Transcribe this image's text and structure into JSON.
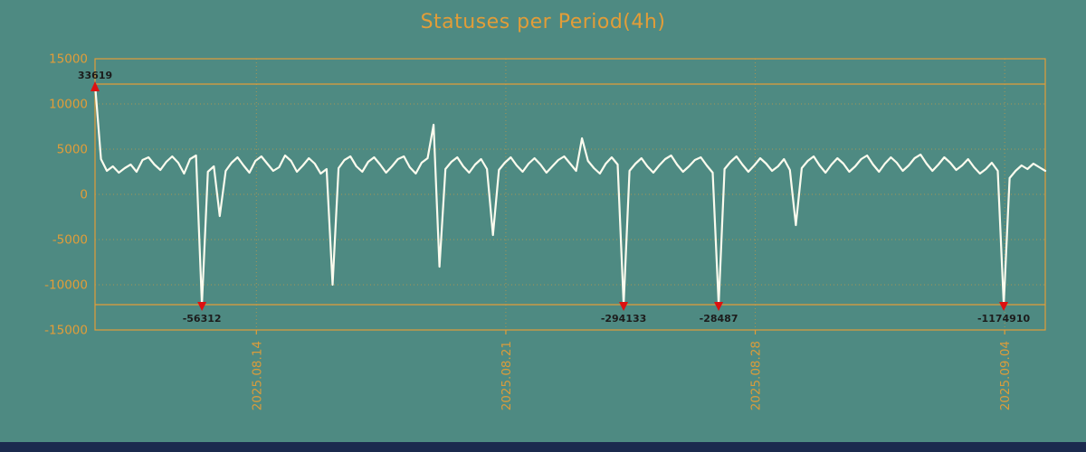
{
  "colors": {
    "background": "#4e8a82",
    "accent": "#e29d38",
    "line": "#fbfbee",
    "marker": "#dd1111",
    "marker_label": "#1c1c1c",
    "footer": "#1b2a4e"
  },
  "chart_data": {
    "type": "line",
    "title": "Statuses per Period(4h)",
    "xlabel": "",
    "ylabel": "",
    "ylim": [
      -15000,
      15000
    ],
    "y_ticks": [
      15000,
      10000,
      5000,
      0,
      -5000,
      -10000,
      -15000
    ],
    "clip_value": 12200,
    "period_hours": 4,
    "grid": true,
    "x_ticks": [
      {
        "pos": 27.17,
        "label": "2025.08.14"
      },
      {
        "pos": 69.17,
        "label": "2025.08.21"
      },
      {
        "pos": 111.17,
        "label": "2025.08.28"
      },
      {
        "pos": 153.17,
        "label": "2025.09.04"
      }
    ],
    "values": [
      33619,
      3900,
      2600,
      3100,
      2400,
      2900,
      3300,
      2500,
      3800,
      4100,
      3300,
      2700,
      3600,
      4200,
      3500,
      2300,
      3900,
      4300,
      -56312,
      2500,
      3100,
      -2400,
      2600,
      3500,
      4100,
      3200,
      2400,
      3700,
      4200,
      3400,
      2600,
      3000,
      4300,
      3700,
      2500,
      3200,
      4000,
      3400,
      2300,
      2800,
      -10000,
      2900,
      3800,
      4200,
      3100,
      2500,
      3600,
      4100,
      3300,
      2400,
      3100,
      3900,
      4200,
      3000,
      2300,
      3500,
      4000,
      7700,
      -8000,
      2800,
      3600,
      4100,
      3100,
      2400,
      3300,
      3900,
      2800,
      -4500,
      2700,
      3500,
      4100,
      3200,
      2500,
      3400,
      4000,
      3300,
      2400,
      3100,
      3800,
      4200,
      3400,
      2600,
      6200,
      3700,
      2900,
      2300,
      3400,
      4100,
      3300,
      -294133,
      2600,
      3400,
      4000,
      3100,
      2400,
      3200,
      3900,
      4300,
      3300,
      2500,
      3100,
      3800,
      4100,
      3200,
      2400,
      -28487,
      2800,
      3600,
      4200,
      3300,
      2500,
      3200,
      4000,
      3400,
      2600,
      3100,
      3900,
      2700,
      -3400,
      2900,
      3700,
      4200,
      3200,
      2400,
      3300,
      4000,
      3400,
      2500,
      3100,
      3900,
      4300,
      3300,
      2500,
      3400,
      4100,
      3500,
      2600,
      3200,
      4000,
      4400,
      3400,
      2600,
      3300,
      4100,
      3500,
      2700,
      3200,
      3900,
      3000,
      2300,
      2800,
      3500,
      2600,
      -1174910,
      1800,
      2600,
      3200,
      2800,
      3400,
      3000,
      2600
    ],
    "annotations": {
      "max": {
        "index": 0,
        "value": 33619,
        "label": "33619"
      },
      "mins": [
        {
          "index": 18,
          "value": -56312,
          "label": "-56312"
        },
        {
          "index": 89,
          "value": -294133,
          "label": "-294133"
        },
        {
          "index": 105,
          "value": -28487,
          "label": "-28487"
        },
        {
          "index": 153,
          "value": -1174910,
          "label": "-1174910"
        }
      ]
    }
  }
}
